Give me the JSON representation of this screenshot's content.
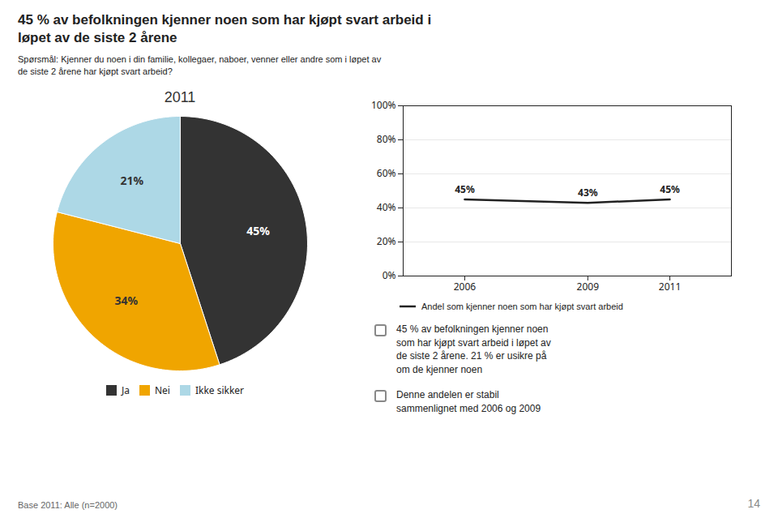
{
  "title": "45 % av befolkningen kjenner noen som har kjøpt svart arbeid i\nløpet av de siste 2 årene",
  "subtitle": "Spørsmål: Kjenner du noen i din familie, kollegaer, naboer, venner eller andre som i løpet av\nde siste 2 årene har kjøpt svart arbeid?",
  "annotations": [
    "45 % av befolkningen kjenner noen\nsom har kjøpt svart arbeid i løpet av\nde siste 2 årene. 21 % er usikre på\nom de kjenner noen",
    "Denne andelen er stabil\nsammenlignet med 2006 og 2009",
    "Base 2011: Alle (n=2000)",
    "14"
  ],
  "chart_data": [
    {
      "type": "pie",
      "title": "2011",
      "categories": [
        "Ja",
        "Nei",
        "Ikke sikker"
      ],
      "values": [
        45,
        34,
        21
      ],
      "value_labels": [
        "45%",
        "34%",
        "21%"
      ],
      "colors": [
        "#333333",
        "#F0A500",
        "#ADD8E6"
      ],
      "data_labels": true,
      "legend": "bottom"
    },
    {
      "type": "line",
      "x": [
        2006,
        2009,
        2011
      ],
      "series": [
        {
          "name": "Andel som kjenner noen som har kjøpt svart arbeid",
          "color": "#222222",
          "values": [
            45,
            43,
            45
          ],
          "value_labels": [
            "45%",
            "43%",
            "45%"
          ]
        }
      ],
      "xlim": [
        2004.5,
        2012.5
      ],
      "xticks": [
        2006,
        2009,
        2011
      ],
      "ylim": [
        0,
        100
      ],
      "yticks": [
        {
          "value": 0,
          "label": "0%"
        },
        {
          "value": 20,
          "label": "20%"
        },
        {
          "value": 40,
          "label": "40%"
        },
        {
          "value": 60,
          "label": "60%"
        },
        {
          "value": 80,
          "label": "80%"
        },
        {
          "value": 100,
          "label": "100%"
        }
      ],
      "grid": true,
      "data_labels": true,
      "legend": "bottom"
    }
  ]
}
